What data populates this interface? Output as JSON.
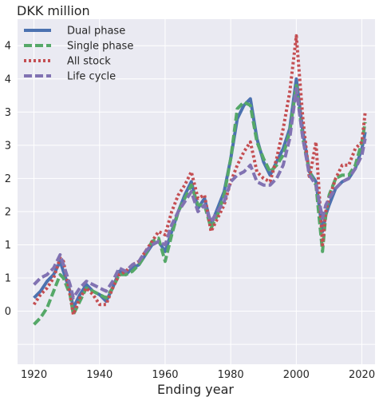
{
  "chart_data": {
    "type": "line",
    "title": "DKK million",
    "xlabel": "Ending year",
    "ylabel": "",
    "xlim": [
      1915,
      2024
    ],
    "ylim": [
      -0.8,
      4.4
    ],
    "x_ticks": [
      1920,
      1940,
      1960,
      1980,
      2000,
      2020
    ],
    "x_tick_labels": [
      "1920",
      "1940",
      "1960",
      "1980",
      "2000",
      "2020"
    ],
    "y_ticks": [
      -0.5,
      0,
      0.5,
      1,
      1.5,
      2,
      2.5,
      3,
      3.5,
      4
    ],
    "y_tick_labels": [
      "",
      "0",
      "1",
      "1",
      "2",
      "2",
      "3",
      "3",
      "4",
      "4"
    ],
    "grid": true,
    "background": "#EAEAF2",
    "legend_position": "top-left",
    "series": [
      {
        "name": "Dual phase",
        "color": "#4C72B0",
        "style": "solid",
        "x": [
          1920,
          1922,
          1924,
          1926,
          1928,
          1929,
          1931,
          1932,
          1934,
          1936,
          1938,
          1940,
          1942,
          1944,
          1946,
          1948,
          1950,
          1952,
          1954,
          1956,
          1958,
          1960,
          1962,
          1964,
          1966,
          1968,
          1970,
          1972,
          1974,
          1976,
          1978,
          1980,
          1982,
          1984,
          1986,
          1988,
          1990,
          1992,
          1994,
          1996,
          1998,
          2000,
          2002,
          2004,
          2006,
          2008,
          2009,
          2010,
          2012,
          2014,
          2016,
          2018,
          2020,
          2021
        ],
        "y": [
          0.2,
          0.3,
          0.45,
          0.55,
          0.75,
          0.6,
          0.3,
          0.05,
          0.25,
          0.4,
          0.3,
          0.25,
          0.15,
          0.35,
          0.6,
          0.55,
          0.65,
          0.7,
          0.85,
          1.0,
          1.05,
          0.9,
          1.2,
          1.5,
          1.75,
          1.95,
          1.55,
          1.7,
          1.3,
          1.55,
          1.8,
          2.3,
          2.9,
          3.1,
          3.2,
          2.6,
          2.25,
          2.05,
          2.25,
          2.45,
          2.75,
          3.5,
          2.7,
          2.1,
          1.95,
          1.2,
          1.45,
          1.6,
          1.85,
          1.95,
          2.0,
          2.15,
          2.45,
          2.7
        ]
      },
      {
        "name": "Single phase",
        "color": "#55A868",
        "style": "dashed",
        "x": [
          1920,
          1922,
          1924,
          1926,
          1928,
          1929,
          1931,
          1932,
          1934,
          1936,
          1938,
          1940,
          1942,
          1944,
          1946,
          1948,
          1950,
          1952,
          1954,
          1956,
          1958,
          1960,
          1962,
          1964,
          1966,
          1968,
          1970,
          1972,
          1974,
          1976,
          1978,
          1980,
          1982,
          1984,
          1986,
          1988,
          1990,
          1992,
          1994,
          1996,
          1998,
          2000,
          2002,
          2004,
          2006,
          2008,
          2009,
          2010,
          2012,
          2014,
          2016,
          2018,
          2020,
          2021
        ],
        "y": [
          -0.2,
          -0.1,
          0.05,
          0.3,
          0.55,
          0.5,
          0.25,
          -0.05,
          0.15,
          0.35,
          0.3,
          0.25,
          0.2,
          0.35,
          0.55,
          0.55,
          0.6,
          0.7,
          0.85,
          1.05,
          1.1,
          0.75,
          1.15,
          1.5,
          1.7,
          1.9,
          1.6,
          1.6,
          1.25,
          1.45,
          1.75,
          2.3,
          3.05,
          3.15,
          3.1,
          2.55,
          2.3,
          2.1,
          2.2,
          2.35,
          2.7,
          3.4,
          2.6,
          2.1,
          1.9,
          0.9,
          1.45,
          1.75,
          2.0,
          2.05,
          2.05,
          2.2,
          2.55,
          2.85
        ]
      },
      {
        "name": "All stock",
        "color": "#C44E52",
        "style": "dotted",
        "x": [
          1920,
          1922,
          1924,
          1926,
          1928,
          1929,
          1931,
          1932,
          1934,
          1936,
          1938,
          1940,
          1942,
          1944,
          1946,
          1948,
          1950,
          1952,
          1954,
          1956,
          1958,
          1960,
          1962,
          1964,
          1966,
          1968,
          1970,
          1972,
          1974,
          1976,
          1978,
          1980,
          1982,
          1984,
          1986,
          1988,
          1990,
          1992,
          1994,
          1996,
          1998,
          2000,
          2002,
          2004,
          2006,
          2008,
          2009,
          2010,
          2012,
          2014,
          2016,
          2018,
          2020,
          2021
        ],
        "y": [
          0.1,
          0.25,
          0.35,
          0.5,
          0.8,
          0.75,
          0.25,
          -0.05,
          0.2,
          0.35,
          0.25,
          0.1,
          0.1,
          0.35,
          0.55,
          0.6,
          0.7,
          0.75,
          0.9,
          1.05,
          1.2,
          1.15,
          1.5,
          1.75,
          1.9,
          2.1,
          1.7,
          1.75,
          1.2,
          1.4,
          1.6,
          1.95,
          2.2,
          2.4,
          2.55,
          2.1,
          2.0,
          1.95,
          2.3,
          2.75,
          3.3,
          4.15,
          2.9,
          2.0,
          2.55,
          1.0,
          1.5,
          1.7,
          2.0,
          2.2,
          2.2,
          2.45,
          2.55,
          3.0
        ]
      },
      {
        "name": "Life cycle",
        "color": "#8172B2",
        "style": "dashed",
        "x": [
          1920,
          1922,
          1924,
          1926,
          1928,
          1929,
          1931,
          1932,
          1934,
          1936,
          1938,
          1940,
          1942,
          1944,
          1946,
          1948,
          1950,
          1952,
          1954,
          1956,
          1958,
          1960,
          1962,
          1964,
          1966,
          1968,
          1970,
          1972,
          1974,
          1976,
          1978,
          1980,
          1982,
          1984,
          1986,
          1988,
          1990,
          1992,
          1994,
          1996,
          1998,
          2000,
          2002,
          2004,
          2006,
          2008,
          2009,
          2010,
          2012,
          2014,
          2016,
          2018,
          2020,
          2021
        ],
        "y": [
          0.4,
          0.5,
          0.55,
          0.65,
          0.85,
          0.7,
          0.4,
          0.2,
          0.35,
          0.45,
          0.4,
          0.35,
          0.3,
          0.45,
          0.65,
          0.6,
          0.7,
          0.75,
          0.9,
          1.0,
          1.05,
          1.0,
          1.3,
          1.5,
          1.65,
          1.8,
          1.5,
          1.6,
          1.35,
          1.5,
          1.65,
          1.95,
          2.05,
          2.1,
          2.2,
          1.95,
          1.9,
          1.9,
          2.0,
          2.2,
          2.6,
          3.35,
          2.6,
          2.05,
          1.9,
          1.4,
          1.6,
          1.7,
          1.85,
          1.95,
          2.0,
          2.15,
          2.35,
          2.6
        ]
      }
    ]
  }
}
